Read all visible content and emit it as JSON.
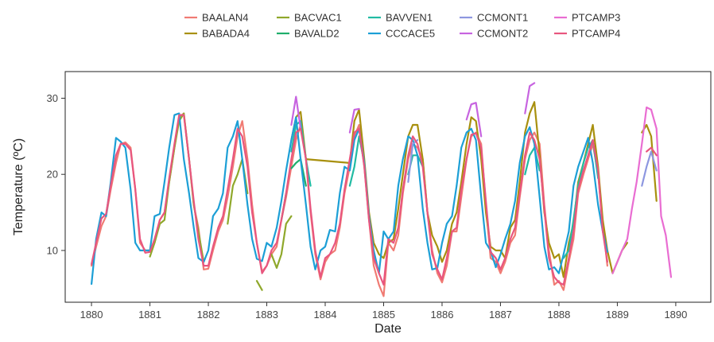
{
  "chart_data": {
    "type": "line",
    "xlabel": "Date",
    "ylabel": "Temperature (ºC)",
    "xlim": [
      1879.55,
      1890.6
    ],
    "ylim": [
      3.2,
      33.5
    ],
    "xticks": [
      1880,
      1881,
      1882,
      1883,
      1884,
      1885,
      1886,
      1887,
      1888,
      1889,
      1890
    ],
    "yticks": [
      10,
      20,
      30
    ],
    "grid": false,
    "legend_position": "top",
    "series": [
      {
        "name": "BAALAN4",
        "color": "#f07b73",
        "x": [
          1880.0,
          1880.08,
          1880.17,
          1880.25,
          1880.33,
          1880.42,
          1880.5,
          1880.58,
          1880.67,
          1880.75,
          1880.83,
          1880.92,
          1881.0,
          1881.08,
          1881.17,
          1881.25,
          1881.33,
          1881.42,
          1881.5,
          1881.58,
          1881.67,
          1881.75,
          1881.83,
          1881.92,
          1882.0,
          1882.08,
          1882.17,
          1882.25,
          1882.33,
          1882.42,
          1882.5,
          1882.58,
          1882.67,
          1882.75,
          1882.83,
          1882.92,
          1883.0,
          1883.08,
          1883.17,
          1883.25,
          1883.33,
          1883.42,
          1883.5,
          1883.58,
          1883.67,
          1883.75,
          1883.83,
          1883.92,
          1884.0,
          1884.08,
          1884.17,
          1884.25,
          1884.33,
          1884.42,
          1884.5,
          1884.58,
          1884.67,
          1884.75,
          1884.83,
          1884.92,
          1885.0,
          1885.08,
          1885.17,
          1885.25,
          1885.33,
          1885.42,
          1885.5,
          1885.58,
          1885.67,
          1885.75,
          1885.83,
          1885.92,
          1886.0,
          1886.08,
          1886.17,
          1886.25,
          1886.33,
          1886.42,
          1886.5,
          1886.58,
          1886.67,
          1886.75,
          1886.83,
          1886.92,
          1887.0,
          1887.08,
          1887.17,
          1887.25,
          1887.33,
          1887.42,
          1887.5,
          1887.58,
          1887.67,
          1887.75,
          1887.83,
          1887.92,
          1888.0,
          1888.08,
          1888.17,
          1888.25,
          1888.33,
          1888.42,
          1888.5,
          1888.58,
          1888.67,
          1888.75,
          1888.83
        ],
        "y": [
          8.0,
          10.5,
          13.2,
          14.5,
          18.0,
          21.5,
          24.0,
          24.2,
          23.5,
          18.0,
          11.0,
          10.0,
          10.0,
          11.0,
          14.0,
          15.0,
          19.0,
          23.5,
          27.5,
          28.0,
          22.0,
          16.0,
          13.0,
          7.5,
          7.6,
          10.0,
          12.5,
          14.0,
          17.0,
          21.0,
          25.0,
          27.0,
          22.0,
          16.0,
          11.0,
          7.2,
          8.0,
          9.5,
          10.5,
          14.0,
          17.0,
          21.0,
          24.5,
          26.5,
          22.0,
          15.0,
          9.5,
          6.2,
          8.5,
          9.5,
          10.0,
          13.0,
          17.5,
          21.0,
          25.0,
          26.5,
          21.0,
          14.0,
          8.0,
          5.5,
          4.0,
          11.0,
          10.0,
          12.0,
          17.5,
          22.0,
          24.0,
          23.5,
          22.0,
          15.0,
          10.0,
          7.0,
          5.8,
          8.0,
          12.5,
          12.5,
          17.0,
          22.0,
          25.0,
          25.5,
          24.0,
          16.0,
          9.0,
          8.5,
          7.0,
          8.5,
          11.0,
          12.0,
          17.0,
          22.0,
          24.5,
          25.5,
          24.0,
          16.0,
          10.0,
          5.5,
          6.0,
          4.8,
          8.5,
          11.5,
          17.5,
          20.0,
          22.0,
          24.0,
          20.0,
          13.5,
          8.0
        ]
      },
      {
        "name": "BABADA4",
        "color": "#a8900e",
        "x": [
          1883.42,
          1883.5,
          1883.58,
          1883.67,
          1884.42,
          1884.5,
          1884.58,
          1884.67,
          1884.75,
          1884.83,
          1884.92,
          1885.0,
          1885.08,
          1885.17,
          1885.25,
          1885.33,
          1885.42,
          1885.5,
          1885.58,
          1885.67,
          1885.75,
          1885.83,
          1885.92,
          1886.0,
          1886.08,
          1886.17,
          1886.25,
          1886.33,
          1886.42,
          1886.5,
          1886.58,
          1886.67,
          1886.75,
          1886.83,
          1886.92,
          1887.0,
          1887.08,
          1887.17,
          1887.25,
          1887.33,
          1887.42,
          1887.5,
          1887.58,
          1887.67,
          1887.75,
          1887.83,
          1887.92,
          1888.0,
          1888.08,
          1888.17,
          1888.25,
          1888.33,
          1888.42,
          1888.5,
          1888.58,
          1888.67,
          1888.75,
          1888.83,
          1888.92,
          1889.0,
          1889.08,
          1889.17,
          1889.25,
          1889.42,
          1889.5,
          1889.58,
          1889.67,
          1889.75
        ],
        "y": [
          24.5,
          27.5,
          28.2,
          22.0,
          21.5,
          27.0,
          28.5,
          22.0,
          15.0,
          11.0,
          9.5,
          9.0,
          11.0,
          11.5,
          15.5,
          20.0,
          25.0,
          26.5,
          26.5,
          22.0,
          15.0,
          12.0,
          10.5,
          8.5,
          10.0,
          13.5,
          15.0,
          19.0,
          24.0,
          27.5,
          27.0,
          22.0,
          15.0,
          10.5,
          10.0,
          10.0,
          9.0,
          13.0,
          14.0,
          19.0,
          25.5,
          28.0,
          29.5,
          22.5,
          15.0,
          11.0,
          9.0,
          9.5,
          6.5,
          11.0,
          13.5,
          19.0,
          21.5,
          24.0,
          26.5,
          21.0,
          14.0,
          10.0,
          7.0,
          8.5,
          10.0,
          11.0,
          null,
          25.5,
          26.5,
          25.0,
          16.5,
          null
        ]
      },
      {
        "name": "BACVAC1",
        "color": "#8fa82b",
        "x": [
          1881.0,
          1881.08,
          1881.17,
          1881.25,
          1881.33,
          1881.42,
          1881.5,
          1881.58,
          1881.67,
          1881.75,
          1881.83,
          1881.92,
          null,
          1882.33,
          1882.42,
          1882.5,
          1882.58,
          1882.67,
          null,
          1882.83,
          1882.92,
          null,
          1883.0,
          1883.08,
          1883.17,
          1883.25,
          1883.33,
          1883.42
        ],
        "y": [
          9.2,
          11.0,
          13.5,
          14.0,
          19.0,
          23.5,
          27.0,
          28.0,
          22.0,
          16.0,
          12.5,
          8.5,
          null,
          13.5,
          18.5,
          20.0,
          22.0,
          17.5,
          null,
          6.0,
          4.8,
          null,
          null,
          9.5,
          7.7,
          9.5,
          13.5,
          14.5
        ]
      },
      {
        "name": "BAVALD2",
        "color": "#1fae6b",
        "x": [
          1883.25,
          1883.33,
          null,
          1883.42,
          1883.5,
          1883.58,
          1883.67,
          1883.75
        ],
        "y": [
          14.0,
          17.5,
          null,
          20.8,
          21.5,
          22.0,
          18.5,
          null
        ]
      },
      {
        "name": "BAVVEN1",
        "color": "#22bba3",
        "x": [
          1883.42,
          1883.5,
          1883.58,
          1883.67,
          1883.75,
          null,
          1884.42,
          1884.5,
          1884.58,
          1884.67,
          null,
          1885.42,
          1885.5,
          1885.58,
          1885.67,
          1885.75,
          null,
          1887.42,
          1887.5,
          1887.58,
          1887.67,
          null,
          1888.08,
          1888.17,
          1888.25,
          1888.33,
          1888.42,
          1888.5,
          1888.58,
          1888.67
        ],
        "y": [
          23.0,
          26.5,
          27.0,
          22.0,
          18.5,
          null,
          18.5,
          21.0,
          25.0,
          21.5,
          null,
          20.0,
          22.5,
          22.5,
          21.0,
          null,
          null,
          20.0,
          22.5,
          23.5,
          20.5,
          null,
          9.0,
          10.0,
          14.0,
          18.5,
          21.5,
          23.5,
          24.5,
          19.5
        ]
      },
      {
        "name": "CCCACE5",
        "color": "#1c9fd6",
        "x": [
          1880.0,
          1880.08,
          1880.17,
          1880.25,
          1880.33,
          1880.42,
          1880.5,
          1880.58,
          1880.67,
          1880.75,
          1880.83,
          1880.92,
          1881.0,
          1881.08,
          1881.17,
          1881.25,
          1881.33,
          1881.42,
          1881.5,
          1881.58,
          1881.67,
          1881.75,
          1881.83,
          1881.92,
          1882.0,
          1882.08,
          1882.17,
          1882.25,
          1882.33,
          1882.42,
          1882.5,
          1882.58,
          1882.67,
          1882.75,
          1882.83,
          1882.92,
          1883.0,
          1883.08,
          1883.17,
          1883.25,
          1883.33,
          1883.42,
          1883.5,
          1883.58,
          1883.67,
          1883.75,
          1883.83,
          1883.92,
          1884.0,
          1884.08,
          1884.17,
          1884.25,
          1884.33,
          1884.42,
          1884.5,
          1884.58,
          1884.67,
          1884.75,
          1884.83,
          1884.92,
          1885.0,
          1885.08,
          1885.17,
          1885.25,
          1885.33,
          1885.42,
          1885.5,
          1885.58,
          1885.67,
          1885.75,
          1885.83,
          1885.92,
          1886.0,
          1886.08,
          1886.17,
          1886.25,
          1886.33,
          1886.42,
          1886.5,
          1886.58,
          1886.67,
          1886.75,
          1886.83,
          1886.92,
          1887.0,
          1887.08,
          1887.17,
          1887.25,
          1887.33,
          1887.42,
          1887.5,
          1887.58,
          1887.67,
          1887.75,
          1887.83,
          1887.92,
          1888.0,
          1888.08,
          1888.17,
          1888.25,
          1888.33,
          1888.42,
          1888.5,
          1888.58,
          1888.67,
          1888.75,
          1888.83
        ],
        "y": [
          5.6,
          11.5,
          15.0,
          14.5,
          19.0,
          24.8,
          24.3,
          23.5,
          18.0,
          11.0,
          10.0,
          10.0,
          10.0,
          14.5,
          14.8,
          19.0,
          23.5,
          27.8,
          28.0,
          22.0,
          17.5,
          13.0,
          9.0,
          8.5,
          10.0,
          14.5,
          15.5,
          17.5,
          23.5,
          25.0,
          27.0,
          22.0,
          16.0,
          11.5,
          8.9,
          8.6,
          11.0,
          10.5,
          13.0,
          16.5,
          20.5,
          24.5,
          27.5,
          22.0,
          16.0,
          10.5,
          7.5,
          10.0,
          10.5,
          12.7,
          12.5,
          17.5,
          21.0,
          20.5,
          24.5,
          26.0,
          21.5,
          14.5,
          10.0,
          7.0,
          12.5,
          11.5,
          12.5,
          18.5,
          22.0,
          25.0,
          24.5,
          22.5,
          15.5,
          11.0,
          7.5,
          7.7,
          11.0,
          13.5,
          14.5,
          18.5,
          23.5,
          25.5,
          26.0,
          24.5,
          17.0,
          11.0,
          10.0,
          7.8,
          9.5,
          11.5,
          13.5,
          16.5,
          21.5,
          25.0,
          26.2,
          24.0,
          17.0,
          10.5,
          7.5,
          7.8,
          7.0,
          9.5,
          12.5,
          18.5,
          21.0,
          23.0,
          24.8,
          21.5,
          16.0,
          12.5,
          9.8
        ]
      },
      {
        "name": "CCMONT1",
        "color": "#8d97e0",
        "x": [
          1885.42,
          1885.5,
          1885.58,
          null,
          1889.42,
          1889.5,
          1889.58,
          1889.67,
          1889.75
        ],
        "y": [
          19.0,
          24.0,
          24.5,
          null,
          18.5,
          21.0,
          23.0,
          20.5,
          null
        ]
      },
      {
        "name": "CCMONT2",
        "color": "#c764e0",
        "x": [
          1883.42,
          1883.5,
          1883.58,
          1883.67,
          null,
          1884.42,
          1884.5,
          1884.58,
          1884.67,
          null,
          1886.42,
          1886.5,
          1886.58,
          1886.67,
          null,
          1887.42,
          1887.5,
          1887.58,
          1887.67
        ],
        "y": [
          26.5,
          30.2,
          26.0,
          null,
          null,
          25.5,
          28.5,
          28.6,
          null,
          null,
          27.2,
          29.2,
          29.4,
          25.0,
          null,
          28.0,
          31.6,
          32.0,
          null
        ]
      },
      {
        "name": "PTCAMP3",
        "color": "#e96dd2",
        "x": [
          1888.92,
          1889.0,
          1889.08,
          1889.17,
          1889.25,
          1889.33,
          1889.42,
          1889.5,
          1889.58,
          1889.67,
          1889.75,
          1889.83,
          1889.92,
          null,
          1889.5,
          1889.58,
          1889.67,
          1889.75
        ],
        "y": [
          7.0,
          8.5,
          10.0,
          11.5,
          15.5,
          19.0,
          24.0,
          28.8,
          28.5,
          26.0,
          14.5,
          12.0,
          6.5,
          null,
          null,
          null,
          null,
          null
        ]
      },
      {
        "name": "PTCAMP4",
        "color": "#e8567f",
        "x": [
          1880.0,
          1880.08,
          1880.17,
          1880.25,
          1880.33,
          1880.42,
          1880.5,
          1880.58,
          1880.67,
          1880.75,
          1880.83,
          1880.92,
          1881.0,
          1881.08,
          1881.17,
          1881.25,
          1881.33,
          1881.42,
          1881.5,
          1881.58,
          1881.67,
          1881.75,
          1881.83,
          1881.92,
          1882.0,
          1882.08,
          1882.17,
          1882.25,
          1882.33,
          1882.42,
          1882.5,
          1882.58,
          1882.67,
          1882.75,
          1882.83,
          1882.92,
          1883.0,
          1883.08,
          1883.17,
          1883.25,
          1883.33,
          1883.42,
          1883.5,
          1883.58,
          1883.67,
          1883.75,
          1883.83,
          1883.92,
          1884.0,
          1884.08,
          1884.17,
          1884.25,
          1884.33,
          1884.42,
          1884.5,
          1884.58,
          1884.67,
          1884.75,
          1884.83,
          1884.92,
          1885.0,
          1885.08,
          1885.17,
          1885.25,
          1885.33,
          1885.42,
          1885.5,
          1885.58,
          1885.67,
          1885.75,
          1885.83,
          1885.92,
          1886.0,
          1886.08,
          1886.17,
          1886.25,
          1886.33,
          1886.42,
          1886.5,
          1886.58,
          1886.67,
          1886.75,
          1886.83,
          1886.92,
          1887.0,
          1887.08,
          1887.17,
          1887.25,
          1887.33,
          1887.42,
          1887.5,
          1887.58,
          1887.67,
          1887.75,
          1887.83,
          1887.92,
          1888.0,
          1888.08,
          1888.17,
          1888.25,
          1888.33,
          1888.42,
          1888.5,
          1888.58,
          1888.67,
          1888.75,
          1888.83,
          null,
          1889.42,
          1889.5,
          1889.58,
          1889.67,
          1889.75,
          1889.83
        ],
        "y": [
          8.2,
          11.0,
          14.2,
          14.8,
          18.5,
          22.5,
          24.0,
          24.0,
          23.2,
          18.0,
          11.5,
          9.7,
          9.8,
          11.5,
          14.0,
          15.0,
          19.5,
          24.0,
          27.8,
          27.8,
          22.0,
          16.5,
          11.5,
          8.0,
          8.0,
          10.5,
          13.0,
          14.5,
          18.0,
          22.0,
          26.0,
          25.0,
          21.0,
          15.0,
          11.0,
          7.0,
          8.0,
          10.0,
          11.0,
          14.0,
          17.5,
          22.0,
          25.5,
          26.0,
          22.0,
          15.5,
          10.0,
          6.5,
          9.0,
          9.5,
          11.0,
          13.5,
          18.0,
          22.0,
          25.5,
          26.0,
          21.0,
          14.0,
          9.0,
          7.0,
          5.5,
          11.5,
          11.0,
          13.0,
          18.0,
          22.5,
          25.0,
          24.0,
          21.0,
          15.0,
          9.5,
          7.5,
          6.2,
          9.0,
          12.5,
          13.0,
          18.0,
          22.0,
          25.2,
          25.4,
          23.5,
          16.5,
          9.8,
          9.0,
          7.5,
          9.0,
          11.5,
          13.0,
          17.5,
          22.5,
          25.5,
          24.5,
          22.0,
          15.5,
          9.0,
          6.5,
          5.8,
          5.5,
          9.0,
          12.5,
          18.0,
          20.5,
          22.5,
          24.5,
          20.5,
          12.5,
          8.5,
          null,
          null,
          23.0,
          23.5,
          22.5,
          null,
          null
        ]
      }
    ]
  }
}
